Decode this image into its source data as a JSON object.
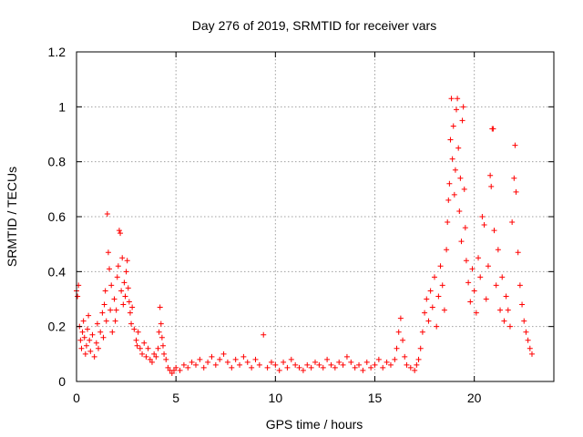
{
  "chart_data": {
    "type": "scatter",
    "title": "Day 276 of 2019, SRMTID for receiver vars",
    "xlabel": "GPS time / hours",
    "ylabel": "SRMTID / TECUs",
    "xlim": [
      0,
      24
    ],
    "ylim": [
      0,
      1.2
    ],
    "xticks": [
      0,
      5,
      10,
      15,
      20
    ],
    "xtick_labels": [
      "0",
      "5",
      "10",
      "15",
      "20"
    ],
    "yticks": [
      0,
      0.2,
      0.4,
      0.6,
      0.8,
      1.0,
      1.2
    ],
    "ytick_labels": [
      "0",
      "0.2",
      "0.4",
      "0.6",
      "0.8",
      "1",
      "1.2"
    ],
    "grid": true,
    "marker": "+",
    "series": [
      {
        "name": "SRMTID",
        "color": "#ff0000",
        "points": [
          [
            0.0,
            0.33
          ],
          [
            0.05,
            0.31
          ],
          [
            0.1,
            0.35
          ],
          [
            0.15,
            0.2
          ],
          [
            0.2,
            0.15
          ],
          [
            0.25,
            0.12
          ],
          [
            0.3,
            0.18
          ],
          [
            0.35,
            0.22
          ],
          [
            0.4,
            0.16
          ],
          [
            0.45,
            0.1
          ],
          [
            0.5,
            0.13
          ],
          [
            0.55,
            0.19
          ],
          [
            0.6,
            0.24
          ],
          [
            0.65,
            0.15
          ],
          [
            0.7,
            0.11
          ],
          [
            0.8,
            0.17
          ],
          [
            0.9,
            0.09
          ],
          [
            1.0,
            0.14
          ],
          [
            1.05,
            0.21
          ],
          [
            1.1,
            0.12
          ],
          [
            1.2,
            0.18
          ],
          [
            1.3,
            0.25
          ],
          [
            1.35,
            0.16
          ],
          [
            1.4,
            0.28
          ],
          [
            1.45,
            0.33
          ],
          [
            1.5,
            0.22
          ],
          [
            1.55,
            0.61
          ],
          [
            1.6,
            0.47
          ],
          [
            1.65,
            0.41
          ],
          [
            1.7,
            0.26
          ],
          [
            1.75,
            0.35
          ],
          [
            1.8,
            0.18
          ],
          [
            1.9,
            0.3
          ],
          [
            1.95,
            0.22
          ],
          [
            2.0,
            0.26
          ],
          [
            2.05,
            0.38
          ],
          [
            2.1,
            0.42
          ],
          [
            2.15,
            0.55
          ],
          [
            2.2,
            0.54
          ],
          [
            2.25,
            0.33
          ],
          [
            2.3,
            0.45
          ],
          [
            2.35,
            0.28
          ],
          [
            2.4,
            0.36
          ],
          [
            2.45,
            0.31
          ],
          [
            2.5,
            0.4
          ],
          [
            2.55,
            0.44
          ],
          [
            2.6,
            0.34
          ],
          [
            2.65,
            0.29
          ],
          [
            2.7,
            0.25
          ],
          [
            2.75,
            0.21
          ],
          [
            2.8,
            0.27
          ],
          [
            2.9,
            0.19
          ],
          [
            3.0,
            0.15
          ],
          [
            3.05,
            0.13
          ],
          [
            3.1,
            0.18
          ],
          [
            3.2,
            0.12
          ],
          [
            3.3,
            0.1
          ],
          [
            3.4,
            0.14
          ],
          [
            3.5,
            0.09
          ],
          [
            3.6,
            0.12
          ],
          [
            3.7,
            0.08
          ],
          [
            3.8,
            0.07
          ],
          [
            3.9,
            0.1
          ],
          [
            4.0,
            0.09
          ],
          [
            4.1,
            0.12
          ],
          [
            4.15,
            0.18
          ],
          [
            4.2,
            0.27
          ],
          [
            4.25,
            0.21
          ],
          [
            4.3,
            0.16
          ],
          [
            4.35,
            0.13
          ],
          [
            4.4,
            0.1
          ],
          [
            4.5,
            0.08
          ],
          [
            4.6,
            0.05
          ],
          [
            4.7,
            0.04
          ],
          [
            4.8,
            0.03
          ],
          [
            4.9,
            0.04
          ],
          [
            5.0,
            0.05
          ],
          [
            5.2,
            0.04
          ],
          [
            5.4,
            0.06
          ],
          [
            5.6,
            0.05
          ],
          [
            5.8,
            0.07
          ],
          [
            6.0,
            0.06
          ],
          [
            6.2,
            0.08
          ],
          [
            6.4,
            0.05
          ],
          [
            6.6,
            0.07
          ],
          [
            6.8,
            0.09
          ],
          [
            7.0,
            0.06
          ],
          [
            7.2,
            0.08
          ],
          [
            7.4,
            0.1
          ],
          [
            7.6,
            0.07
          ],
          [
            7.8,
            0.05
          ],
          [
            8.0,
            0.08
          ],
          [
            8.2,
            0.06
          ],
          [
            8.4,
            0.09
          ],
          [
            8.6,
            0.07
          ],
          [
            8.8,
            0.05
          ],
          [
            9.0,
            0.08
          ],
          [
            9.2,
            0.06
          ],
          [
            9.4,
            0.17
          ],
          [
            9.6,
            0.05
          ],
          [
            9.8,
            0.07
          ],
          [
            10.0,
            0.06
          ],
          [
            10.2,
            0.04
          ],
          [
            10.4,
            0.07
          ],
          [
            10.6,
            0.05
          ],
          [
            10.8,
            0.08
          ],
          [
            11.0,
            0.06
          ],
          [
            11.2,
            0.05
          ],
          [
            11.4,
            0.04
          ],
          [
            11.6,
            0.06
          ],
          [
            11.8,
            0.05
          ],
          [
            12.0,
            0.07
          ],
          [
            12.2,
            0.06
          ],
          [
            12.4,
            0.05
          ],
          [
            12.6,
            0.08
          ],
          [
            12.8,
            0.06
          ],
          [
            13.0,
            0.05
          ],
          [
            13.2,
            0.07
          ],
          [
            13.4,
            0.06
          ],
          [
            13.6,
            0.09
          ],
          [
            13.8,
            0.07
          ],
          [
            14.0,
            0.05
          ],
          [
            14.2,
            0.06
          ],
          [
            14.4,
            0.04
          ],
          [
            14.6,
            0.07
          ],
          [
            14.8,
            0.05
          ],
          [
            15.0,
            0.06
          ],
          [
            15.2,
            0.08
          ],
          [
            15.4,
            0.05
          ],
          [
            15.6,
            0.07
          ],
          [
            15.8,
            0.06
          ],
          [
            16.0,
            0.08
          ],
          [
            16.1,
            0.12
          ],
          [
            16.2,
            0.18
          ],
          [
            16.3,
            0.23
          ],
          [
            16.4,
            0.15
          ],
          [
            16.5,
            0.09
          ],
          [
            16.6,
            0.06
          ],
          [
            16.8,
            0.05
          ],
          [
            17.0,
            0.04
          ],
          [
            17.1,
            0.06
          ],
          [
            17.2,
            0.08
          ],
          [
            17.3,
            0.12
          ],
          [
            17.4,
            0.18
          ],
          [
            17.5,
            0.25
          ],
          [
            17.6,
            0.3
          ],
          [
            17.7,
            0.22
          ],
          [
            17.8,
            0.33
          ],
          [
            17.9,
            0.27
          ],
          [
            18.0,
            0.38
          ],
          [
            18.1,
            0.2
          ],
          [
            18.2,
            0.31
          ],
          [
            18.3,
            0.42
          ],
          [
            18.4,
            0.35
          ],
          [
            18.5,
            0.26
          ],
          [
            18.6,
            0.48
          ],
          [
            18.65,
            0.58
          ],
          [
            18.7,
            0.66
          ],
          [
            18.75,
            0.72
          ],
          [
            18.8,
            0.88
          ],
          [
            18.85,
            1.03
          ],
          [
            18.9,
            0.81
          ],
          [
            18.95,
            0.93
          ],
          [
            19.0,
            0.68
          ],
          [
            19.05,
            0.77
          ],
          [
            19.1,
            0.99
          ],
          [
            19.15,
            1.03
          ],
          [
            19.2,
            0.85
          ],
          [
            19.25,
            0.62
          ],
          [
            19.3,
            0.74
          ],
          [
            19.35,
            0.51
          ],
          [
            19.4,
            0.95
          ],
          [
            19.45,
            1.0
          ],
          [
            19.5,
            0.7
          ],
          [
            19.55,
            0.56
          ],
          [
            19.6,
            0.44
          ],
          [
            19.7,
            0.36
          ],
          [
            19.8,
            0.29
          ],
          [
            19.9,
            0.41
          ],
          [
            20.0,
            0.33
          ],
          [
            20.1,
            0.25
          ],
          [
            20.2,
            0.45
          ],
          [
            20.3,
            0.38
          ],
          [
            20.4,
            0.6
          ],
          [
            20.5,
            0.57
          ],
          [
            20.6,
            0.3
          ],
          [
            20.7,
            0.42
          ],
          [
            20.8,
            0.75
          ],
          [
            20.85,
            0.71
          ],
          [
            20.9,
            0.92
          ],
          [
            20.95,
            0.92
          ],
          [
            21.0,
            0.55
          ],
          [
            21.1,
            0.35
          ],
          [
            21.2,
            0.48
          ],
          [
            21.3,
            0.26
          ],
          [
            21.4,
            0.38
          ],
          [
            21.5,
            0.22
          ],
          [
            21.6,
            0.31
          ],
          [
            21.7,
            0.26
          ],
          [
            21.8,
            0.2
          ],
          [
            21.9,
            0.58
          ],
          [
            22.0,
            0.74
          ],
          [
            22.05,
            0.86
          ],
          [
            22.1,
            0.69
          ],
          [
            22.2,
            0.47
          ],
          [
            22.3,
            0.35
          ],
          [
            22.4,
            0.28
          ],
          [
            22.5,
            0.22
          ],
          [
            22.6,
            0.18
          ],
          [
            22.7,
            0.15
          ],
          [
            22.8,
            0.12
          ],
          [
            22.9,
            0.1
          ]
        ]
      }
    ]
  }
}
